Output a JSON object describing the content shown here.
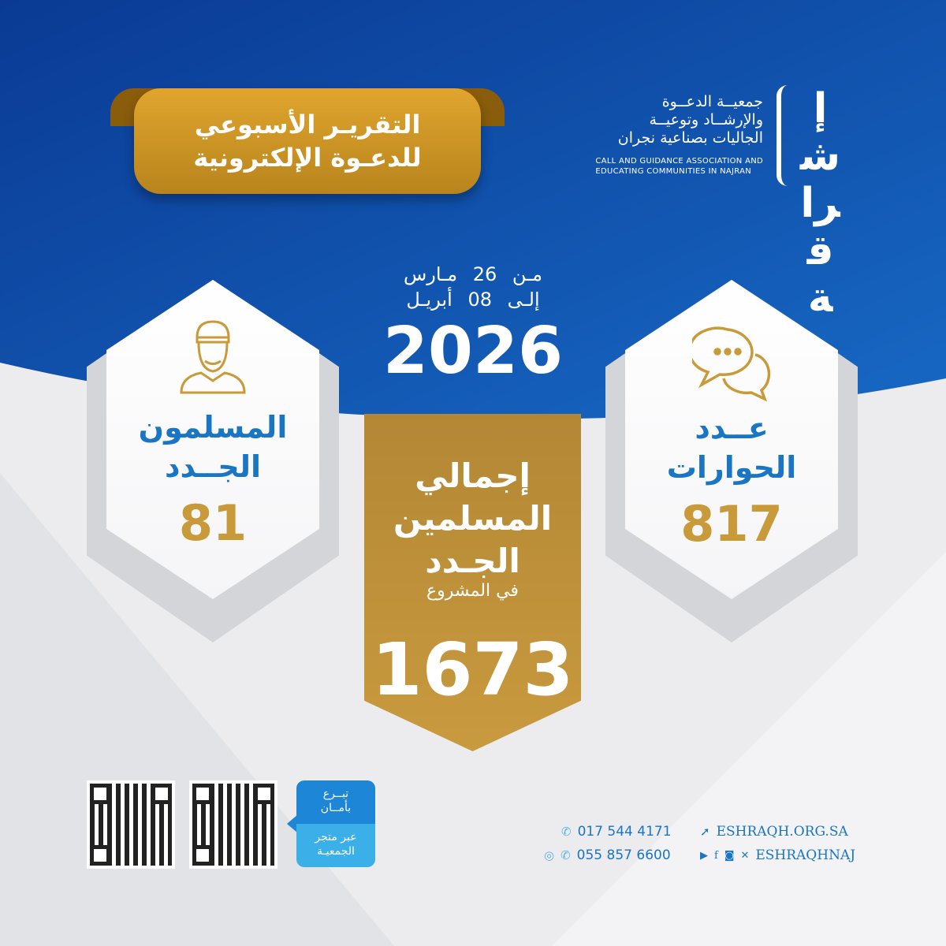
{
  "banner": {
    "line1": "التقريـر الأسبوعي",
    "line2": "للدعـوة الإلكترونية"
  },
  "logo": {
    "ar_line1": "جمعيــة الدعــوة",
    "ar_line2": "والإرشــاد وتوعيــة",
    "ar_line3": "الجاليات بصناعية نجران",
    "en_line1": "CALL AND GUIDANCE ASSOCIATION AND",
    "en_line2": "EDUCATING COMMUNITIES IN NAJRAN",
    "mark": "إشراقة"
  },
  "period": {
    "from": "مـن 26 مـارس",
    "to": "إلـى 08 أبريـل",
    "year": "2026"
  },
  "cards": [
    {
      "title1": "المسلمون",
      "title2": "الجــدد",
      "value": "81",
      "icon": "muslim-man-icon"
    },
    {
      "title1": "عــدد",
      "title2": "الحوارات",
      "value": "817",
      "icon": "chat-bubbles-icon"
    }
  ],
  "total": {
    "line1": "إجمالي",
    "line2": "المسلمين",
    "line3": "الجـدد",
    "sub": "في المشروع",
    "value": "1673"
  },
  "donate": {
    "line1": "تبــرع",
    "line2": "بأمــان",
    "line3": "عبر متجر",
    "line4": "الجمعيـة"
  },
  "contacts": {
    "phone": "017 544 4171",
    "whatsapp": "055 857 6600",
    "website": "ESHRAQH.ORG.SA",
    "social": "ESHRAQHNAJ"
  },
  "colors": {
    "blue": "#0d47a8",
    "gold": "#c99a3a",
    "text_blue": "#1a75c2"
  }
}
